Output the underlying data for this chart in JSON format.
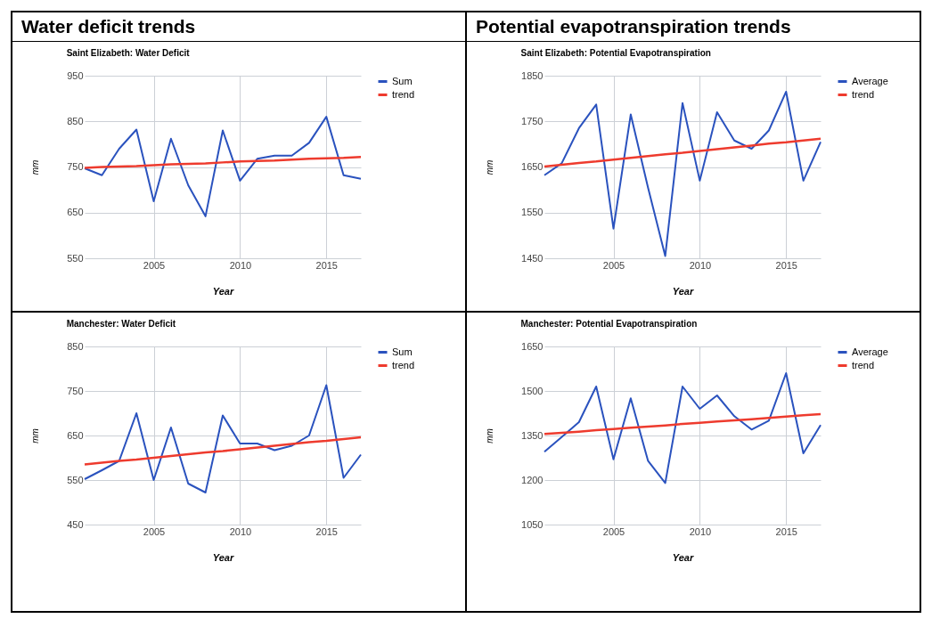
{
  "chart_data": [
    {
      "type": "line",
      "annotations": [
        "Water deficit trends"
      ],
      "title": "Saint Elizabeth: Water Deficit",
      "xlabel": "Year",
      "ylabel": "mm",
      "x": [
        2001,
        2002,
        2003,
        2004,
        2005,
        2006,
        2007,
        2008,
        2009,
        2010,
        2011,
        2012,
        2013,
        2014,
        2015,
        2016,
        2017
      ],
      "xlim": [
        2001,
        2017
      ],
      "xticks": [
        2005,
        2010,
        2015
      ],
      "ylim": [
        550,
        950
      ],
      "yticks": [
        550,
        650,
        750,
        850,
        950
      ],
      "grid": true,
      "legend": "top right",
      "series": [
        {
          "name": "Sum",
          "color": "#2a52be",
          "values": [
            747,
            732,
            790,
            832,
            675,
            812,
            710,
            642,
            830,
            720,
            768,
            775,
            775,
            803,
            860,
            732,
            724
          ]
        },
        {
          "name": "trend",
          "type": "line",
          "color": "#ee3b2e",
          "values": [
            748,
            750,
            751,
            752,
            754,
            756,
            757,
            758,
            760,
            762,
            763,
            764,
            766,
            768,
            769,
            770,
            772
          ]
        }
      ]
    },
    {
      "type": "line",
      "annotations": [
        "Potential evapotranspiration trends"
      ],
      "title": "Saint Elizabeth: Potential Evapotranspiration",
      "xlabel": "Year",
      "ylabel": "mm",
      "x": [
        2001,
        2002,
        2003,
        2004,
        2005,
        2006,
        2007,
        2008,
        2009,
        2010,
        2011,
        2012,
        2013,
        2014,
        2015,
        2016,
        2017
      ],
      "xlim": [
        2001,
        2017
      ],
      "xticks": [
        2005,
        2010,
        2015
      ],
      "ylim": [
        1450,
        1850
      ],
      "yticks": [
        1450,
        1550,
        1650,
        1750,
        1850
      ],
      "grid": true,
      "legend": "top right",
      "series": [
        {
          "name": "Average",
          "color": "#2a52be",
          "values": [
            1632,
            1658,
            1735,
            1787,
            1515,
            1765,
            1605,
            1455,
            1790,
            1620,
            1770,
            1708,
            1690,
            1730,
            1815,
            1620,
            1705
          ]
        },
        {
          "name": "trend",
          "type": "line",
          "color": "#ee3b2e",
          "values": [
            1651,
            1655,
            1659,
            1662,
            1666,
            1670,
            1674,
            1678,
            1681,
            1685,
            1689,
            1693,
            1697,
            1701,
            1704,
            1708,
            1712
          ]
        }
      ]
    },
    {
      "type": "line",
      "title": "Manchester: Water Deficit",
      "xlabel": "Year",
      "ylabel": "mm",
      "x": [
        2001,
        2002,
        2003,
        2004,
        2005,
        2006,
        2007,
        2008,
        2009,
        2010,
        2011,
        2012,
        2013,
        2014,
        2015,
        2016,
        2017
      ],
      "xlim": [
        2001,
        2017
      ],
      "xticks": [
        2005,
        2010,
        2015
      ],
      "ylim": [
        450,
        850
      ],
      "yticks": [
        450,
        550,
        650,
        750,
        850
      ],
      "grid": true,
      "legend": "top right",
      "series": [
        {
          "name": "Sum",
          "color": "#2a52be",
          "values": [
            552,
            572,
            593,
            700,
            550,
            668,
            542,
            522,
            695,
            632,
            632,
            617,
            627,
            650,
            763,
            555,
            607
          ]
        },
        {
          "name": "trend",
          "type": "line",
          "color": "#ee3b2e",
          "values": [
            585,
            589,
            593,
            596,
            600,
            604,
            608,
            612,
            615,
            619,
            623,
            627,
            631,
            635,
            638,
            642,
            646
          ]
        }
      ]
    },
    {
      "type": "line",
      "title": "Manchester: Potential Evapotranspiration",
      "xlabel": "Year",
      "ylabel": "mm",
      "x": [
        2001,
        2002,
        2003,
        2004,
        2005,
        2006,
        2007,
        2008,
        2009,
        2010,
        2011,
        2012,
        2013,
        2014,
        2015,
        2016,
        2017
      ],
      "xlim": [
        2001,
        2017
      ],
      "xticks": [
        2005,
        2010,
        2015
      ],
      "ylim": [
        1050,
        1650
      ],
      "yticks": [
        1050,
        1200,
        1350,
        1500,
        1650
      ],
      "grid": true,
      "legend": "top right",
      "series": [
        {
          "name": "Average",
          "color": "#2a52be",
          "values": [
            1295,
            1345,
            1395,
            1515,
            1270,
            1475,
            1265,
            1190,
            1515,
            1440,
            1485,
            1415,
            1370,
            1400,
            1560,
            1290,
            1385
          ]
        },
        {
          "name": "trend",
          "type": "line",
          "color": "#ee3b2e",
          "values": [
            1355,
            1359,
            1363,
            1368,
            1372,
            1376,
            1380,
            1384,
            1389,
            1393,
            1397,
            1401,
            1405,
            1409,
            1414,
            1418,
            1422
          ]
        }
      ]
    }
  ]
}
